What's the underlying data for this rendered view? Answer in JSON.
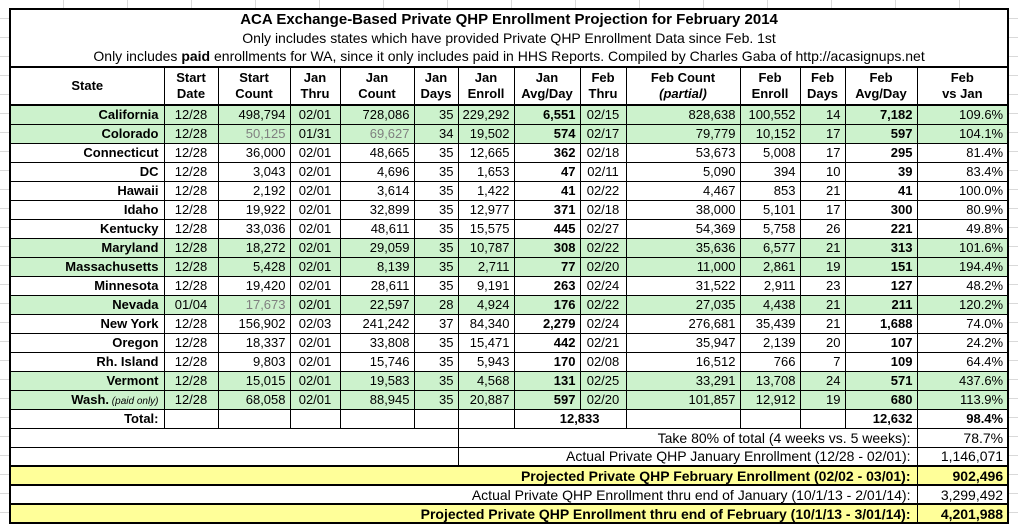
{
  "title": {
    "line1": "ACA Exchange-Based Private QHP Enrollment Projection for February 2014",
    "line2": "Only includes states which have provided Private QHP Enrollment Data since Feb. 1st",
    "line3_prefix": "Only includes ",
    "line3_bold": "paid",
    "line3_suffix": " enrollments for WA, since it only includes paid in HHS Reports. Compiled by Charles Gaba of http://acasignups.net"
  },
  "columns": [
    {
      "key": "state",
      "l1": "State",
      "l2": ""
    },
    {
      "key": "start-date",
      "l1": "Start",
      "l2": "Date"
    },
    {
      "key": "start-count",
      "l1": "Start",
      "l2": "Count"
    },
    {
      "key": "jan-thru",
      "l1": "Jan",
      "l2": "Thru"
    },
    {
      "key": "jan-count",
      "l1": "Jan",
      "l2": "Count"
    },
    {
      "key": "jan-days",
      "l1": "Jan",
      "l2": "Days"
    },
    {
      "key": "jan-enroll",
      "l1": "Jan",
      "l2": "Enroll"
    },
    {
      "key": "jan-avg-day",
      "l1": "Jan",
      "l2": "Avg/Day"
    },
    {
      "key": "feb-thru",
      "l1": "Feb",
      "l2": "Thru"
    },
    {
      "key": "feb-count-partial",
      "l1": "Feb Count",
      "l2": "(partial)",
      "italic2": true
    },
    {
      "key": "feb-enroll",
      "l1": "Feb",
      "l2": "Enroll"
    },
    {
      "key": "feb-days",
      "l1": "Feb",
      "l2": "Days"
    },
    {
      "key": "feb-avg-day",
      "l1": "Feb",
      "l2": "Avg/Day"
    },
    {
      "key": "feb-vs-jan",
      "l1": "Feb",
      "l2": "vs Jan"
    }
  ],
  "rows": [
    {
      "state": "California",
      "green": true,
      "cells": [
        "12/28",
        "498,794",
        "02/01",
        "728,086",
        "35",
        "229,292",
        "6,551",
        "02/15",
        "828,638",
        "100,552",
        "14",
        "7,182",
        "109.6%"
      ]
    },
    {
      "state": "Colorado",
      "green": true,
      "gray": [
        1,
        3
      ],
      "cells": [
        "12/28",
        "50,125",
        "01/31",
        "69,627",
        "34",
        "19,502",
        "574",
        "02/17",
        "79,779",
        "10,152",
        "17",
        "597",
        "104.1%"
      ]
    },
    {
      "state": "Connecticut",
      "green": false,
      "cells": [
        "12/28",
        "36,000",
        "02/01",
        "48,665",
        "35",
        "12,665",
        "362",
        "02/18",
        "53,673",
        "5,008",
        "17",
        "295",
        "81.4%"
      ]
    },
    {
      "state": "DC",
      "green": false,
      "cells": [
        "12/28",
        "3,043",
        "02/01",
        "4,696",
        "35",
        "1,653",
        "47",
        "02/11",
        "5,090",
        "394",
        "10",
        "39",
        "83.4%"
      ]
    },
    {
      "state": "Hawaii",
      "green": false,
      "cells": [
        "12/28",
        "2,192",
        "02/01",
        "3,614",
        "35",
        "1,422",
        "41",
        "02/22",
        "4,467",
        "853",
        "21",
        "41",
        "100.0%"
      ]
    },
    {
      "state": "Idaho",
      "green": false,
      "cells": [
        "12/28",
        "19,922",
        "02/01",
        "32,899",
        "35",
        "12,977",
        "371",
        "02/18",
        "38,000",
        "5,101",
        "17",
        "300",
        "80.9%"
      ]
    },
    {
      "state": "Kentucky",
      "green": false,
      "cells": [
        "12/28",
        "33,036",
        "02/01",
        "48,611",
        "35",
        "15,575",
        "445",
        "02/27",
        "54,369",
        "5,758",
        "26",
        "221",
        "49.8%"
      ]
    },
    {
      "state": "Maryland",
      "green": true,
      "cells": [
        "12/28",
        "18,272",
        "02/01",
        "29,059",
        "35",
        "10,787",
        "308",
        "02/22",
        "35,636",
        "6,577",
        "21",
        "313",
        "101.6%"
      ]
    },
    {
      "state": "Massachusetts",
      "green": true,
      "cells": [
        "12/28",
        "5,428",
        "02/01",
        "8,139",
        "35",
        "2,711",
        "77",
        "02/20",
        "11,000",
        "2,861",
        "19",
        "151",
        "194.4%"
      ]
    },
    {
      "state": "Minnesota",
      "green": false,
      "cells": [
        "12/28",
        "19,420",
        "02/01",
        "28,611",
        "35",
        "9,191",
        "263",
        "02/24",
        "31,522",
        "2,911",
        "23",
        "127",
        "48.2%"
      ]
    },
    {
      "state": "Nevada",
      "green": true,
      "gray": [
        1
      ],
      "cells": [
        "01/04",
        "17,673",
        "02/01",
        "22,597",
        "28",
        "4,924",
        "176",
        "02/22",
        "27,035",
        "4,438",
        "21",
        "211",
        "120.2%"
      ]
    },
    {
      "state": "New York",
      "green": false,
      "cells": [
        "12/28",
        "156,902",
        "02/03",
        "241,242",
        "37",
        "84,340",
        "2,279",
        "02/24",
        "276,681",
        "35,439",
        "21",
        "1,688",
        "74.0%"
      ]
    },
    {
      "state": "Oregon",
      "green": false,
      "cells": [
        "12/28",
        "18,337",
        "02/01",
        "33,808",
        "35",
        "15,471",
        "442",
        "02/21",
        "35,947",
        "2,139",
        "20",
        "107",
        "24.2%"
      ]
    },
    {
      "state": "Rh. Island",
      "green": false,
      "cells": [
        "12/28",
        "9,803",
        "02/01",
        "15,746",
        "35",
        "5,943",
        "170",
        "02/08",
        "16,512",
        "766",
        "7",
        "109",
        "64.4%"
      ]
    },
    {
      "state": "Vermont",
      "green": true,
      "cells": [
        "12/28",
        "15,015",
        "02/01",
        "19,583",
        "35",
        "4,568",
        "131",
        "02/25",
        "33,291",
        "13,708",
        "24",
        "571",
        "437.6%"
      ]
    },
    {
      "state": "Wash.",
      "note": "(paid only)",
      "green": true,
      "cells": [
        "12/28",
        "68,058",
        "02/01",
        "88,945",
        "35",
        "20,887",
        "597",
        "02/20",
        "101,857",
        "12,912",
        "19",
        "680",
        "113.9%"
      ]
    }
  ],
  "total_row": {
    "label": "Total:",
    "jan_avg_day": "12,833",
    "feb_avg_day": "12,632",
    "feb_vs_jan": "98.4%"
  },
  "summary_rows": [
    {
      "label": "Take 80% of total (4 weeks vs. 5 weeks):",
      "value": "78.7%",
      "style": "plain",
      "indent": true
    },
    {
      "label": "Actual Private QHP January Enrollment (12/28 - 02/01):",
      "value": "1,146,071",
      "style": "plain",
      "indent": true
    },
    {
      "label": "Projected Private QHP February Enrollment (02/02 - 03/01):",
      "value": "902,496",
      "style": "yellow",
      "indent": false
    },
    {
      "label": "Actual Private QHP Enrollment thru end of January (10/1/13 - 2/01/14):",
      "value": "3,299,492",
      "style": "plain",
      "indent": false
    },
    {
      "label": "Projected Private QHP Enrollment thru end of February (10/1/13 - 3/01/14):",
      "value": "4,201,988",
      "style": "yellow",
      "indent": false
    }
  ],
  "colors": {
    "row_highlight_green": "#ccf2cc",
    "summary_highlight_yellow": "#ffff99",
    "muted_text_gray": "#7f7f7f"
  }
}
